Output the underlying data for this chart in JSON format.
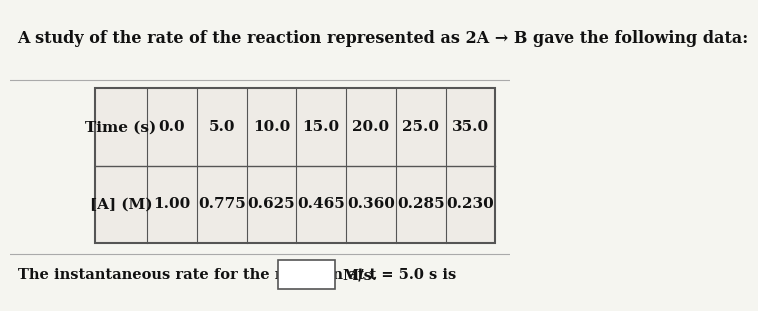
{
  "title_text": "A study of the rate of the reaction represented as 2A → B gave the following data:",
  "row1_label": "Time (s)",
  "row2_label": "[A] (M)",
  "time_values": [
    "0.0",
    "5.0",
    "10.0",
    "15.0",
    "20.0",
    "25.0",
    "35.0"
  ],
  "conc_values": [
    "1.00",
    "0.775",
    "0.625",
    "0.465",
    "0.360",
    "0.285",
    "0.230"
  ],
  "footer_text": "The instantaneous rate for the reaction at t = 5.0 s is",
  "footer_suffix": "M/s.",
  "bg_color": "#f5f5f0",
  "cell_bg": "#eeebe6",
  "border_color": "#555555",
  "text_color": "#111111",
  "font_size_title": 11.5,
  "font_size_table": 11,
  "font_size_footer": 10.5
}
